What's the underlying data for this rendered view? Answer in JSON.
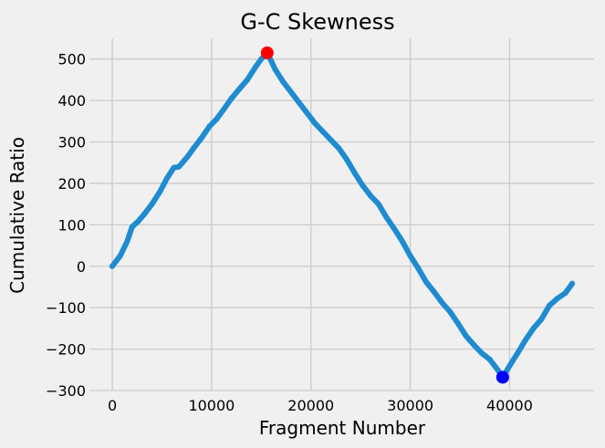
{
  "chart_data": {
    "type": "line",
    "title": "G-C Skewness",
    "xlabel": "Fragment Number",
    "ylabel": "Cumulative Ratio",
    "xlim": [
      -2300,
      48500
    ],
    "ylim": [
      -300,
      550
    ],
    "x_ticks": [
      0,
      10000,
      20000,
      30000,
      40000
    ],
    "y_ticks": [
      -300,
      -200,
      -100,
      0,
      100,
      200,
      300,
      400,
      500
    ],
    "grid": true,
    "series": [
      {
        "type": "line",
        "color": "#1f8bd0",
        "x": [
          0,
          800,
          1500,
          2000,
          2600,
          3200,
          4000,
          4800,
          5500,
          6200,
          6700,
          7600,
          8200,
          9000,
          9800,
          10500,
          11200,
          12000,
          12800,
          13600,
          14400,
          15000,
          15600,
          16400,
          17200,
          18000,
          18800,
          19600,
          20400,
          21200,
          22000,
          22800,
          23600,
          24400,
          25200,
          26000,
          26800,
          27600,
          28400,
          29200,
          30000,
          30800,
          31600,
          32400,
          33200,
          34000,
          34800,
          35600,
          36400,
          37200,
          38000,
          38800,
          39300,
          40000,
          40800,
          41600,
          42400,
          43200,
          44000,
          44800,
          45600,
          46300
        ],
        "y": [
          0,
          25,
          60,
          95,
          108,
          125,
          150,
          180,
          212,
          238,
          240,
          265,
          285,
          310,
          338,
          355,
          378,
          405,
          428,
          450,
          480,
          500,
          515,
          475,
          445,
          420,
          395,
          370,
          345,
          325,
          305,
          285,
          258,
          225,
          195,
          170,
          150,
          118,
          90,
          60,
          25,
          -5,
          -38,
          -62,
          -88,
          -110,
          -138,
          -168,
          -190,
          -210,
          -225,
          -250,
          -268,
          -240,
          -210,
          -178,
          -150,
          -128,
          -95,
          -78,
          -65,
          -42
        ]
      }
    ],
    "markers": [
      {
        "x": 15600,
        "y": 515,
        "color": "#ff0000"
      },
      {
        "x": 39300,
        "y": -268,
        "color": "#0000ff"
      }
    ]
  }
}
